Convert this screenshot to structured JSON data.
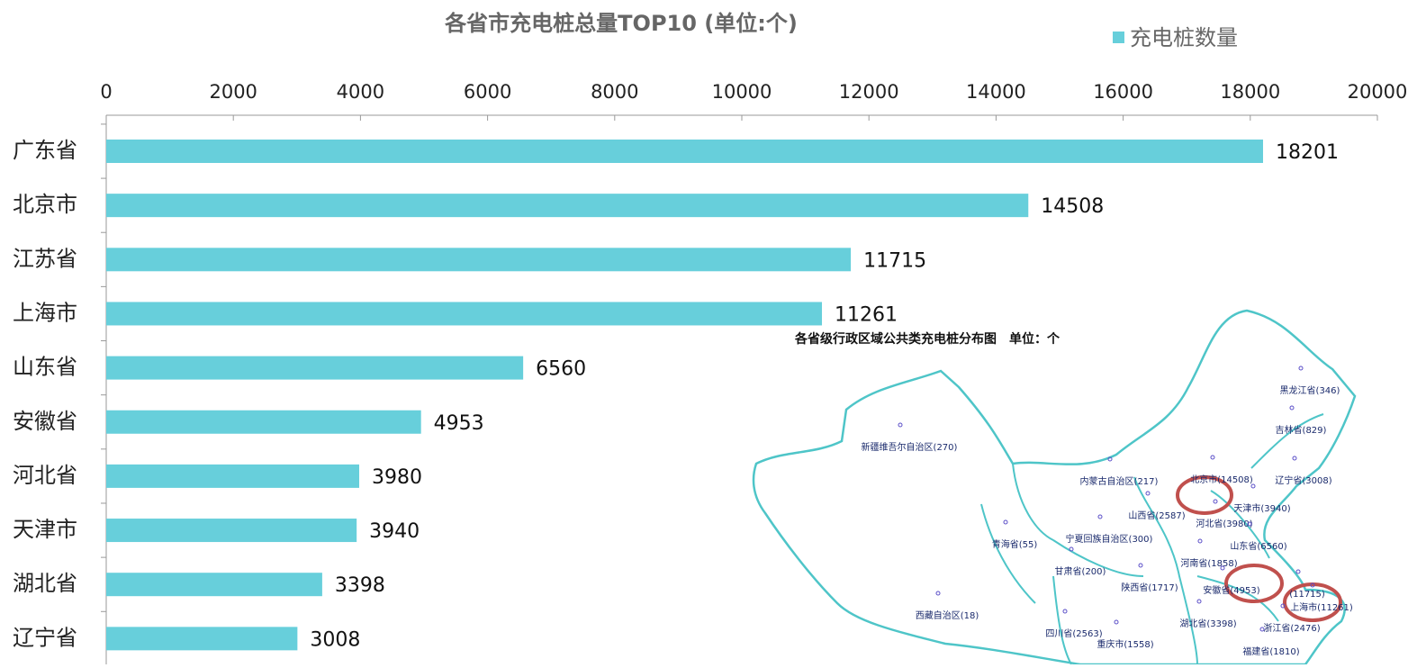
{
  "chart_data": {
    "type": "bar",
    "orientation": "horizontal",
    "title": "各省市充电桩总量TOP10 (单位:个)",
    "categories": [
      "广东省",
      "北京市",
      "江苏省",
      "上海市",
      "山东省",
      "安徽省",
      "河北省",
      "天津市",
      "湖北省",
      "辽宁省"
    ],
    "series": [
      {
        "name": "充电桩数量",
        "color": "#67cfdb",
        "values": [
          18201,
          14508,
          11715,
          11261,
          6560,
          4953,
          3980,
          3940,
          3398,
          3008
        ]
      }
    ],
    "xlim": [
      0,
      20000
    ],
    "xticks": [
      0,
      2000,
      4000,
      6000,
      8000,
      10000,
      12000,
      14000,
      16000,
      18000,
      20000
    ],
    "legend": "top-right",
    "map_title": "各省级行政区域公共类充电桩分布图　单位：个",
    "map_labels": [
      "新疆维吾尔自治区(270)",
      "内蒙古自治区(217)",
      "北京市(14508)",
      "辽宁省(3008)",
      "黑龙江省(346)",
      "吉林省(829)",
      "天津市(3940)",
      "山西省(2587)",
      "河北省(3980)",
      "山东省(6560)",
      "青海省(55)",
      "宁夏回族自治区(300)",
      "河南省(1858)",
      "甘肃省(200)",
      "陕西省(1717)",
      "安徽省(4953)",
      "(11715)",
      "上海市(11261)",
      "西藏自治区(18)",
      "湖北省(3398)",
      "浙江省(2476)",
      "四川省(2563)",
      "重庆市(1558)",
      "福建省(1810)"
    ]
  }
}
